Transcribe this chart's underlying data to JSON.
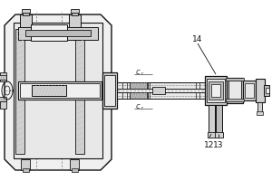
{
  "bg_color": "#ffffff",
  "lc": "#333333",
  "dc": "#111111",
  "dash_c": "#777777",
  "gray1": "#e8e8e8",
  "gray2": "#d0d0d0",
  "gray3": "#bbbbbb",
  "gray4": "#f0f0f0",
  "hatch_c": "#aaaaaa",
  "label_14": "14",
  "label_12": "12",
  "label_13": "13",
  "figsize": [
    3.0,
    2.0
  ],
  "dpi": 100
}
